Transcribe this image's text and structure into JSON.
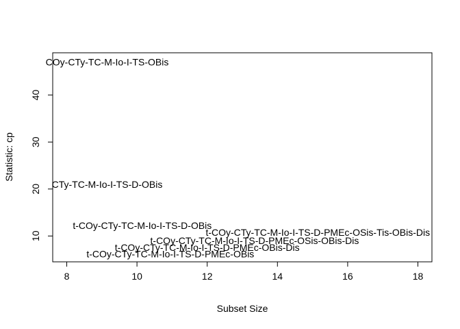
{
  "chart_data": {
    "type": "scatter",
    "title": "",
    "xlabel": "Subset Size",
    "ylabel": "Statistic: cp",
    "xlim": [
      7.6,
      18.4
    ],
    "ylim": [
      4.5,
      49
    ],
    "x_ticks": [
      8,
      10,
      12,
      14,
      16,
      18
    ],
    "y_ticks": [
      10,
      20,
      30,
      40
    ],
    "grid": false,
    "points": [
      {
        "x": 9.15,
        "y": 47.0,
        "label": "COy-CTy-TC-M-Io-I-TS-OBis"
      },
      {
        "x": 9.15,
        "y": 21.0,
        "label": "CTy-TC-M-Io-I-TS-D-OBis"
      },
      {
        "x": 10.15,
        "y": 12.2,
        "label": "t-COy-CTy-TC-M-Io-I-TS-D-OBis"
      },
      {
        "x": 15.15,
        "y": 10.8,
        "label": "t-COy-CTy-TC-M-Io-I-TS-D-PMEc-OSis-Tis-OBis-Dis"
      },
      {
        "x": 13.35,
        "y": 9.0,
        "label": "t-COy-CTy-TC-M-Io-I-TS-D-PMEc-OSis-OBis-Dis"
      },
      {
        "x": 12.0,
        "y": 7.6,
        "label": "t-COy-CTy-TC-M-Io-I-TS-D-PMEc-OBis-Dis"
      },
      {
        "x": 10.95,
        "y": 6.2,
        "label": "t-COy-CTy-TC-M-Io-I-TS-D-PMEc-OBis"
      }
    ]
  }
}
